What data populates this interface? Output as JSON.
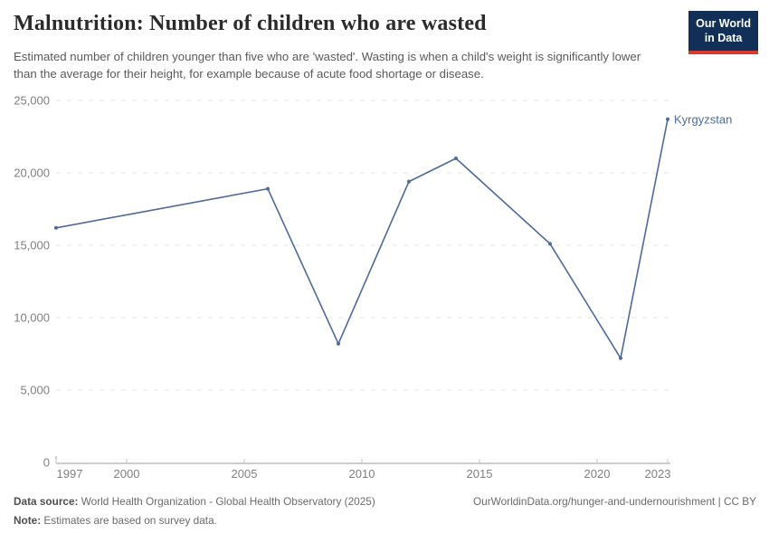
{
  "header": {
    "title": "Malnutrition: Number of children who are wasted",
    "subtitle": "Estimated number of children younger than five who are 'wasted'. Wasting is when a child's weight is significantly lower than the average for their height, for example because of acute food shortage or disease.",
    "logo": {
      "line1": "Our World",
      "line2": "in Data"
    }
  },
  "chart_data": {
    "type": "line",
    "title": "Malnutrition: Number of children who are wasted",
    "series": [
      {
        "name": "Kyrgyzstan",
        "x": [
          1997,
          2006,
          2009,
          2012,
          2014,
          2018,
          2021,
          2023
        ],
        "values": [
          16200,
          18900,
          8200,
          19400,
          21000,
          15100,
          7200,
          23700
        ]
      }
    ],
    "xlabel": "",
    "ylabel": "",
    "x_ticks": [
      1997,
      2000,
      2005,
      2010,
      2015,
      2020,
      2023
    ],
    "y_ticks": [
      0,
      5000,
      10000,
      15000,
      20000,
      25000
    ],
    "xlim": [
      1997,
      2023
    ],
    "ylim": [
      0,
      25000
    ],
    "grid": "horizontal-dashed",
    "legend_position": "end-of-line-label",
    "end_label": "Kyrgyzstan",
    "line_color": "#4c6a9c",
    "label_color": "#4c6a9c",
    "tick_color": "#808080",
    "grid_color": "#e4e4e4",
    "axis_color": "#9a9a9a"
  },
  "footer": {
    "source_label": "Data source:",
    "source_text": " World Health Organization - Global Health Observatory (2025)",
    "link_text": "OurWorldinData.org/hunger-and-undernourishment | CC BY",
    "note_label": "Note:",
    "note_text": " Estimates are based on survey data."
  }
}
